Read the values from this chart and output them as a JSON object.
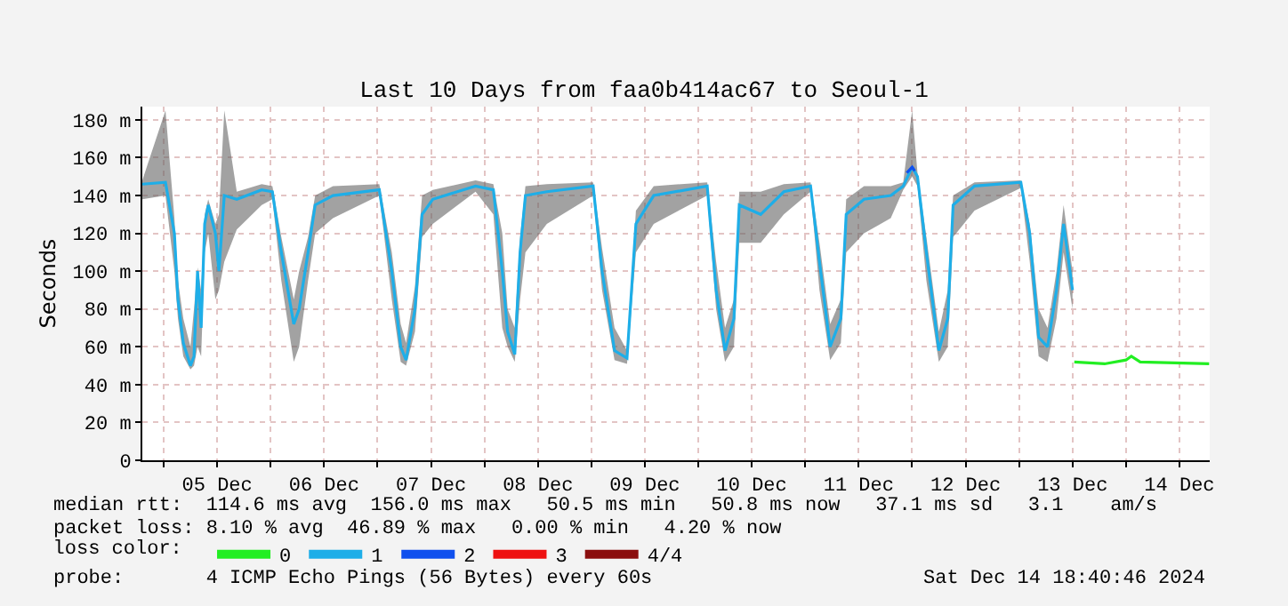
{
  "chart_data": {
    "type": "line",
    "title": "Last 10 Days from faa0b414ac67 to Seoul-1",
    "ylabel": "Seconds",
    "xlim": [
      "2024-12-04T19:12",
      "2024-12-14T18:48"
    ],
    "ylim": [
      0,
      187
    ],
    "xticks": [
      {
        "value": "2024-12-05T12:00",
        "label": "05 Dec"
      },
      {
        "value": "2024-12-06T12:00",
        "label": "06 Dec"
      },
      {
        "value": "2024-12-07T12:00",
        "label": "07 Dec"
      },
      {
        "value": "2024-12-08T12:00",
        "label": "08 Dec"
      },
      {
        "value": "2024-12-09T12:00",
        "label": "09 Dec"
      },
      {
        "value": "2024-12-10T12:00",
        "label": "10 Dec"
      },
      {
        "value": "2024-12-11T12:00",
        "label": "11 Dec"
      },
      {
        "value": "2024-12-12T12:00",
        "label": "12 Dec"
      },
      {
        "value": "2024-12-13T12:00",
        "label": "13 Dec"
      },
      {
        "value": "2024-12-14T12:00",
        "label": "14 Dec"
      },
      {
        "value": "2024-12-05T00:00",
        "label": null
      },
      {
        "value": "2024-12-06T00:00",
        "label": null
      },
      {
        "value": "2024-12-07T00:00",
        "label": null
      },
      {
        "value": "2024-12-08T00:00",
        "label": null
      },
      {
        "value": "2024-12-09T00:00",
        "label": null
      },
      {
        "value": "2024-12-10T00:00",
        "label": null
      },
      {
        "value": "2024-12-11T00:00",
        "label": null
      },
      {
        "value": "2024-12-12T00:00",
        "label": null
      },
      {
        "value": "2024-12-13T00:00",
        "label": null
      },
      {
        "value": "2024-12-14T00:00",
        "label": null
      }
    ],
    "yticks": [
      0,
      {
        "value": 20,
        "label": "20 m"
      },
      {
        "value": 40,
        "label": "40 m"
      },
      {
        "value": 60,
        "label": "60 m"
      },
      {
        "value": 80,
        "label": "80 m"
      },
      {
        "value": 100,
        "label": "100 m"
      },
      {
        "value": 120,
        "label": "120 m"
      },
      {
        "value": 140,
        "label": "140 m"
      },
      {
        "value": 160,
        "label": "160 m"
      },
      {
        "value": 180,
        "label": "180 m"
      }
    ],
    "grid": true,
    "legend": "bottom",
    "legend_title": "loss color:",
    "annotations": [
      "median rtt:  114.6 ms avg  156.0 ms max   50.5 ms min   50.8 ms now   37.1 ms sd   3.1    am/s",
      "packet loss: 8.10 % avg  46.89 % max   0.00 % min   4.20 % now",
      "probe:       4 ICMP Echo Pings (56 Bytes) every 60s",
      "Sat Dec 14 18:40:46 2024"
    ],
    "series": [
      {
        "name": "0",
        "color": "#22ee22",
        "x": [
          "2024-12-13T12:24",
          "2024-12-13T19:12",
          "2024-12-14T00:00",
          "2024-12-14T01:12",
          "2024-12-14T03:12",
          "2024-12-14T18:40"
        ],
        "values": [
          52,
          51,
          53,
          55,
          52,
          51
        ]
      },
      {
        "name": "1",
        "color": "#1eaee8",
        "x": [
          "2024-12-04T19:12",
          "2024-12-05T00:24",
          "2024-12-05T02:24",
          "2024-12-05T03:12",
          "2024-12-05T04:24",
          "2024-12-05T06:00",
          "2024-12-05T06:48",
          "2024-12-05T07:36",
          "2024-12-05T08:24",
          "2024-12-05T09:12",
          "2024-12-05T10:00",
          "2024-12-05T11:36",
          "2024-12-05T12:24",
          "2024-12-05T13:36",
          "2024-12-05T16:24",
          "2024-12-05T22:00",
          "2024-12-06T00:24",
          "2024-12-06T02:24",
          "2024-12-06T05:12",
          "2024-12-06T06:24",
          "2024-12-06T08:24",
          "2024-12-06T10:00",
          "2024-12-06T14:00",
          "2024-12-07T00:24",
          "2024-12-07T03:12",
          "2024-12-07T05:12",
          "2024-12-07T06:24",
          "2024-12-07T08:24",
          "2024-12-07T10:00",
          "2024-12-07T12:24",
          "2024-12-07T22:00",
          "2024-12-08T02:00",
          "2024-12-08T04:00",
          "2024-12-08T05:12",
          "2024-12-08T06:48",
          "2024-12-08T08:00",
          "2024-12-08T09:12",
          "2024-12-08T14:00",
          "2024-12-09T00:24",
          "2024-12-09T02:24",
          "2024-12-09T05:12",
          "2024-12-09T08:00",
          "2024-12-09T10:00",
          "2024-12-09T14:00",
          "2024-12-10T02:00",
          "2024-12-10T04:00",
          "2024-12-10T06:00",
          "2024-12-10T08:00",
          "2024-12-10T09:12",
          "2024-12-10T14:00",
          "2024-12-10T19:12",
          "2024-12-11T01:12",
          "2024-12-11T03:12",
          "2024-12-11T05:36",
          "2024-12-11T08:00",
          "2024-12-11T09:12",
          "2024-12-11T13:12",
          "2024-12-11T19:12",
          "2024-12-11T22:00",
          "2024-12-12T00:00",
          "2024-12-12T01:12",
          "2024-12-12T03:12",
          "2024-12-12T06:00",
          "2024-12-12T08:00",
          "2024-12-12T09:12",
          "2024-12-12T14:00",
          "2024-12-13T00:24",
          "2024-12-13T02:24",
          "2024-12-13T04:24",
          "2024-12-13T06:24",
          "2024-12-13T08:24",
          "2024-12-13T10:00",
          "2024-12-13T12:00"
        ],
        "values": [
          146,
          147,
          120,
          85,
          62,
          50,
          55,
          100,
          70,
          125,
          135,
          120,
          100,
          140,
          138,
          143,
          142,
          110,
          72,
          80,
          110,
          135,
          140,
          143,
          100,
          60,
          53,
          80,
          130,
          138,
          145,
          143,
          100,
          68,
          56,
          110,
          140,
          142,
          145,
          100,
          58,
          54,
          125,
          140,
          145,
          90,
          58,
          75,
          135,
          130,
          142,
          145,
          105,
          60,
          75,
          130,
          138,
          140,
          145,
          155,
          150,
          110,
          58,
          75,
          135,
          145,
          147,
          120,
          65,
          60,
          90,
          125,
          90
        ],
        "lower": [
          138,
          140,
          100,
          75,
          55,
          48,
          50,
          60,
          55,
          110,
          120,
          85,
          90,
          105,
          122,
          135,
          138,
          95,
          52,
          60,
          95,
          120,
          128,
          140,
          85,
          52,
          50,
          68,
          118,
          125,
          142,
          130,
          70,
          60,
          52,
          85,
          110,
          125,
          140,
          90,
          53,
          51,
          110,
          125,
          140,
          80,
          52,
          60,
          115,
          115,
          130,
          142,
          90,
          53,
          62,
          110,
          120,
          128,
          143,
          150,
          145,
          95,
          52,
          60,
          118,
          132,
          144,
          105,
          55,
          52,
          75,
          110,
          80
        ],
        "upper": [
          148,
          185,
          128,
          95,
          75,
          60,
          80,
          102,
          90,
          130,
          138,
          125,
          130,
          185,
          142,
          146,
          145,
          118,
          85,
          100,
          118,
          140,
          145,
          146,
          110,
          72,
          62,
          92,
          140,
          143,
          148,
          146,
          120,
          80,
          70,
          118,
          145,
          146,
          147,
          112,
          70,
          58,
          132,
          145,
          147,
          105,
          70,
          85,
          142,
          142,
          146,
          147,
          115,
          72,
          85,
          138,
          145,
          145,
          147,
          185,
          152,
          118,
          68,
          90,
          140,
          147,
          148,
          125,
          80,
          70,
          100,
          135,
          100
        ]
      },
      {
        "name": "2",
        "color": "#1050ee",
        "x": [
          "2024-12-11T22:48",
          "2024-12-12T00:00",
          "2024-12-12T00:36"
        ],
        "values": [
          152,
          155,
          153
        ]
      },
      {
        "name": "3",
        "color": "#ee1111",
        "values": [
          null
        ]
      },
      {
        "name": "4/4",
        "color": "#8b0f0f",
        "values": [
          null
        ]
      }
    ]
  }
}
